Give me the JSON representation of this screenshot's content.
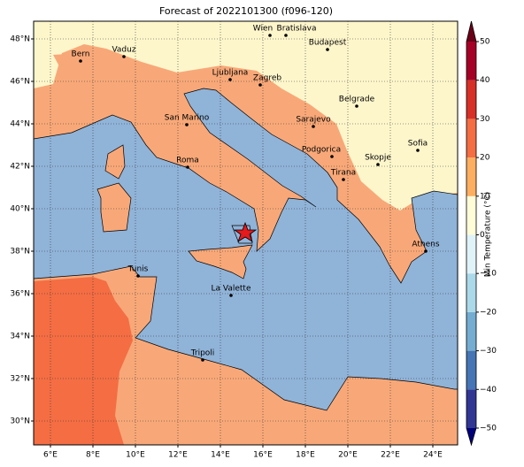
{
  "title": "Forecast of 2022101300 (f096-120)",
  "map": {
    "xticks": [
      {
        "value": 6,
        "label": "6°E"
      },
      {
        "value": 8,
        "label": "8°E"
      },
      {
        "value": 10,
        "label": "10°E"
      },
      {
        "value": 12,
        "label": "12°E"
      },
      {
        "value": 14,
        "label": "14°E"
      },
      {
        "value": 16,
        "label": "16°E"
      },
      {
        "value": 18,
        "label": "18°E"
      },
      {
        "value": 20,
        "label": "20°E"
      },
      {
        "value": 22,
        "label": "22°E"
      },
      {
        "value": 24,
        "label": "24°E"
      }
    ],
    "yticks": [
      {
        "value": 30,
        "label": "30°N"
      },
      {
        "value": 32,
        "label": "32°N"
      },
      {
        "value": 34,
        "label": "34°N"
      },
      {
        "value": 36,
        "label": "36°N"
      },
      {
        "value": 38,
        "label": "38°N"
      },
      {
        "value": 40,
        "label": "40°N"
      },
      {
        "value": 42,
        "label": "42°N"
      },
      {
        "value": 44,
        "label": "44°N"
      },
      {
        "value": 46,
        "label": "46°N"
      },
      {
        "value": 48,
        "label": "48°N"
      }
    ],
    "grid": true,
    "cities": [
      "Bern",
      "Vaduz",
      "Wien",
      "Bratislava",
      "Budapest",
      "Ljubljana",
      "Zagreb",
      "Belgrade",
      "San Marino",
      "Sarajevo",
      "Podgorica",
      "Sofia",
      "Skopje",
      "Roma",
      "Tirana",
      "Athens",
      "Tunis",
      "La Valette",
      "Tripoli"
    ]
  },
  "colorbar": {
    "label": "Min Temperature (°C)",
    "ticks": [
      {
        "value": -50,
        "label": "−50"
      },
      {
        "value": -40,
        "label": "−40"
      },
      {
        "value": -30,
        "label": "−30"
      },
      {
        "value": -20,
        "label": "−20"
      },
      {
        "value": -10,
        "label": "−10"
      },
      0,
      10,
      20,
      30,
      40,
      50
    ],
    "colors": [
      "#313695",
      "#4575b4",
      "#74add1",
      "#abd9e9",
      "#e0f3f8",
      "#fffdd8",
      "#fdae61",
      "#f46d43",
      "#d73027",
      "#a50026"
    ],
    "extend_colors": [
      "#00007a",
      "#6a0018"
    ]
  }
}
